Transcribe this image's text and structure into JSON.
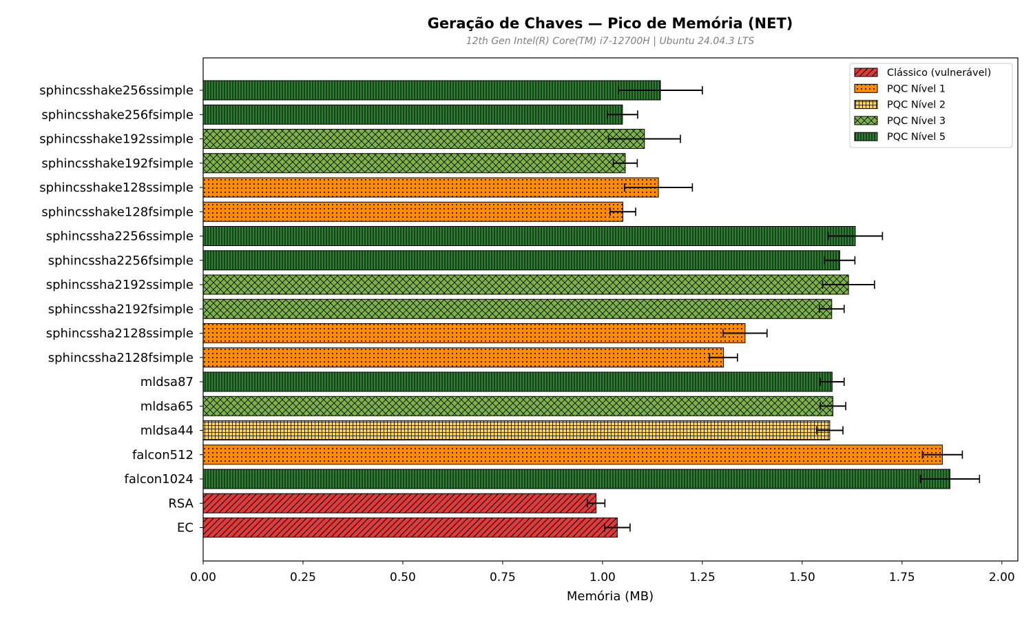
{
  "chart_data": {
    "type": "bar",
    "orientation": "horizontal",
    "title": "Geração de Chaves — Pico de Memória (NET)",
    "subtitle": "12th Gen Intel(R) Core(TM) i7-12700H | Ubuntu 24.04.3 LTS",
    "xlabel": "Memória (MB)",
    "ylabel": "",
    "xlim": [
      0,
      2.04
    ],
    "xticks": [
      "0.00",
      "0.25",
      "0.50",
      "0.75",
      "1.00",
      "1.25",
      "1.50",
      "1.75",
      "2.00"
    ],
    "grid": false,
    "legend_position": "top-right",
    "legend": [
      {
        "name": "Clássico (vulnerável)",
        "color": "#e03a3a",
        "pattern": "diagonal"
      },
      {
        "name": "PQC Nível 1",
        "color": "#ff8c00",
        "pattern": "dots"
      },
      {
        "name": "PQC Nível 2",
        "color": "#ffd54f",
        "pattern": "grid"
      },
      {
        "name": "PQC Nível 3",
        "color": "#7cb342",
        "pattern": "crosshatch"
      },
      {
        "name": "PQC Nível 5",
        "color": "#2e7d32",
        "pattern": "vertical"
      }
    ],
    "categories": [
      "sphincsshake256ssimple",
      "sphincsshake256fsimple",
      "sphincsshake192ssimple",
      "sphincsshake192fsimple",
      "sphincsshake128ssimple",
      "sphincsshake128fsimple",
      "sphincssha2256ssimple",
      "sphincssha2256fsimple",
      "sphincssha2192ssimple",
      "sphincssha2192fsimple",
      "sphincssha2128ssimple",
      "sphincssha2128fsimple",
      "mldsa87",
      "mldsa65",
      "mldsa44",
      "falcon512",
      "falcon1024",
      "RSA",
      "EC"
    ],
    "values": [
      1.145,
      1.05,
      1.105,
      1.057,
      1.14,
      1.051,
      1.633,
      1.594,
      1.616,
      1.574,
      1.357,
      1.303,
      1.575,
      1.577,
      1.569,
      1.851,
      1.87,
      0.984,
      1.037
    ],
    "errors": [
      0.105,
      0.038,
      0.09,
      0.03,
      0.085,
      0.032,
      0.068,
      0.038,
      0.065,
      0.031,
      0.055,
      0.035,
      0.03,
      0.032,
      0.033,
      0.05,
      0.074,
      0.022,
      0.032
    ],
    "levels": [
      "PQC Nível 5",
      "PQC Nível 5",
      "PQC Nível 3",
      "PQC Nível 3",
      "PQC Nível 1",
      "PQC Nível 1",
      "PQC Nível 5",
      "PQC Nível 5",
      "PQC Nível 3",
      "PQC Nível 3",
      "PQC Nível 1",
      "PQC Nível 1",
      "PQC Nível 5",
      "PQC Nível 3",
      "PQC Nível 2",
      "PQC Nível 1",
      "PQC Nível 5",
      "Clássico (vulnerável)",
      "Clássico (vulnerável)"
    ]
  }
}
